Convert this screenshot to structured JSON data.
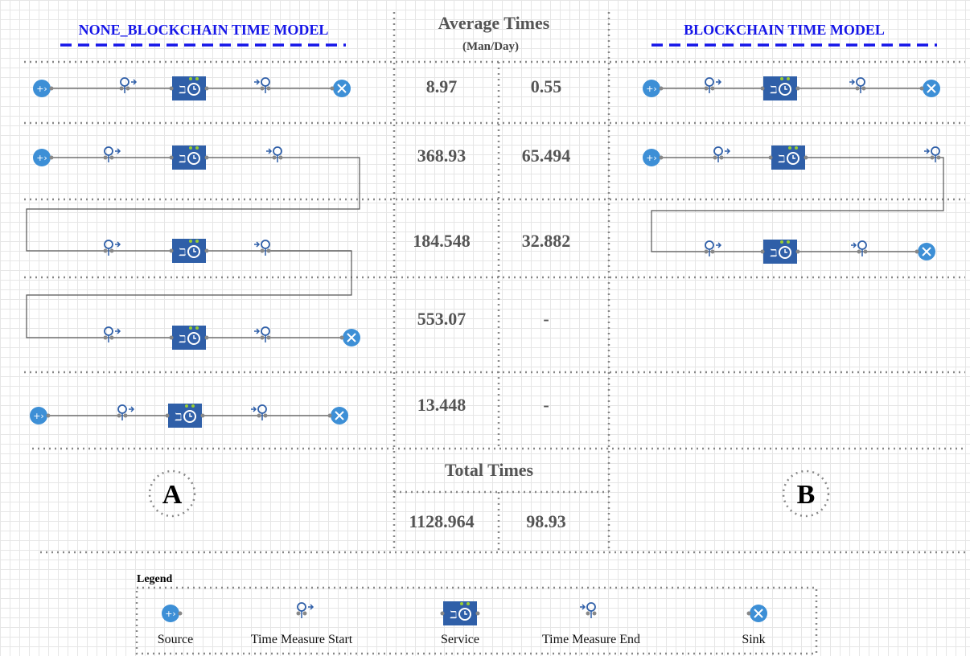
{
  "left_title": "NONE_BLOCKCHAIN TIME MODEL",
  "right_title": "BLOCKCHAIN TIME MODEL",
  "average": {
    "title": "Average Times",
    "unit": "(Man/Day)",
    "rows": [
      [
        "8.97",
        "0.55"
      ],
      [
        "368.93",
        "65.494"
      ],
      [
        "184.548",
        "32.882"
      ],
      [
        "553.07",
        "-"
      ],
      [
        "13.448",
        "-"
      ]
    ]
  },
  "total": {
    "title": "Total Times",
    "values": [
      "1128.964",
      "98.93"
    ]
  },
  "labels": [
    "A",
    "B"
  ],
  "legend": {
    "title": "Legend",
    "items": [
      "Source",
      "Time Measure Start",
      "Service",
      "Time Measure End",
      "Sink"
    ]
  }
}
